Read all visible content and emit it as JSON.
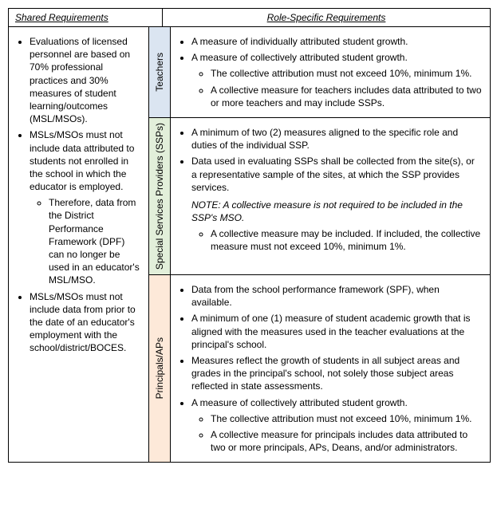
{
  "headers": {
    "shared": "Shared Requirements",
    "role": "Role-Specific Requirements"
  },
  "shared": {
    "b1": "Evaluations of licensed personnel are based on 70% professional practices and 30% measures of student learning/outcomes (MSL/MSOs).",
    "b2": "MSLs/MSOs must not include data attributed to students not enrolled in the school in which the educator is employed.",
    "b2s1": "Therefore, data from the District Performance Framework (DPF) can no longer be used in an educator's MSL/MSO.",
    "b3": "MSLs/MSOs must not include data from prior to the date of an educator's employment with the school/district/BOCES."
  },
  "teachers": {
    "label": "Teachers",
    "b1": "A measure of individually attributed student growth.",
    "b2": "A measure of collectively attributed student growth.",
    "b2s1": "The collective attribution must not exceed 10%, minimum 1%.",
    "b2s2": "A collective measure for teachers includes data attributed to two or more teachers and may include SSPs."
  },
  "ssps": {
    "label": "Special Services Providers (SSPs)",
    "b1": "A minimum of two (2) measures aligned to the specific role and duties of the individual SSP.",
    "b2": "Data used in evaluating SSPs shall be collected from the site(s), or a representative sample of the sites, at which the SSP provides services.",
    "note": "NOTE: A collective measure is not required to be included in the SSP's MSO.",
    "b2s1": "A collective measure may be included. If included, the collective measure must not exceed 10%, minimum 1%."
  },
  "principals": {
    "label": "Principals/APs",
    "b1": "Data from the school performance framework (SPF), when available.",
    "b2": "A minimum of one (1) measure of student academic growth that is aligned with the measures used in the teacher evaluations at the principal's school.",
    "b3": "Measures reflect the growth of students in all subject areas and grades in the principal's school, not solely those subject areas reflected in state assessments.",
    "b4": "A measure of collectively attributed student growth.",
    "b4s1": "The collective attribution must not exceed 10%, minimum 1%.",
    "b4s2": "A collective measure for principals includes data attributed to two or more principals, APs, Deans, and/or administrators."
  },
  "colors": {
    "blue": "#dbe5f1",
    "green": "#e2efda",
    "tan": "#fde9d9"
  }
}
